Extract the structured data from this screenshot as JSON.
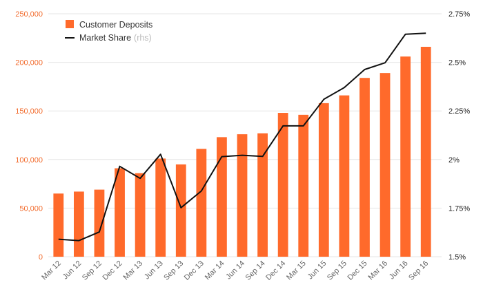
{
  "chart_data": {
    "type": "bar",
    "categories": [
      "Mar 12",
      "Jun 12",
      "Sep 12",
      "Dec 12",
      "Mar 13",
      "Jun 13",
      "Sep 13",
      "Dec 13",
      "Mar 14",
      "Jun 14",
      "Sep 14",
      "Dec 14",
      "Mar 15",
      "Jun 15",
      "Sep 15",
      "Dec 15",
      "Mar 16",
      "Jun 16",
      "Sep 16"
    ],
    "series": [
      {
        "name": "Customer Deposits",
        "type": "bar",
        "axis": "left",
        "color": "#ff6a2b",
        "values": [
          65000,
          67000,
          69000,
          91000,
          86000,
          101000,
          95000,
          111000,
          123000,
          126000,
          127000,
          148000,
          146000,
          158000,
          166000,
          184000,
          189000,
          206000,
          216000
        ]
      },
      {
        "name": "Market Share",
        "name_suffix": "(rhs)",
        "type": "line",
        "axis": "right",
        "color": "#111111",
        "values": [
          1.59,
          1.583,
          1.627,
          1.965,
          1.903,
          2.027,
          1.752,
          1.838,
          2.015,
          2.022,
          2.016,
          2.173,
          2.173,
          2.31,
          2.37,
          2.463,
          2.498,
          2.645,
          2.65
        ]
      }
    ],
    "y_left": {
      "ylim": [
        0,
        250000
      ],
      "ticks": [
        "0",
        "50,000",
        "100,000",
        "150,000",
        "200,000",
        "250,000"
      ],
      "tick_color": "#f26a2b"
    },
    "y_right": {
      "ylim": [
        1.5,
        2.75
      ],
      "ticks": [
        "1.5%",
        "1.75%",
        "2%",
        "2.25%",
        "2.5%",
        "2.75%"
      ],
      "tick_color": "#222222"
    },
    "grid": true,
    "legend_position": "top-left"
  }
}
